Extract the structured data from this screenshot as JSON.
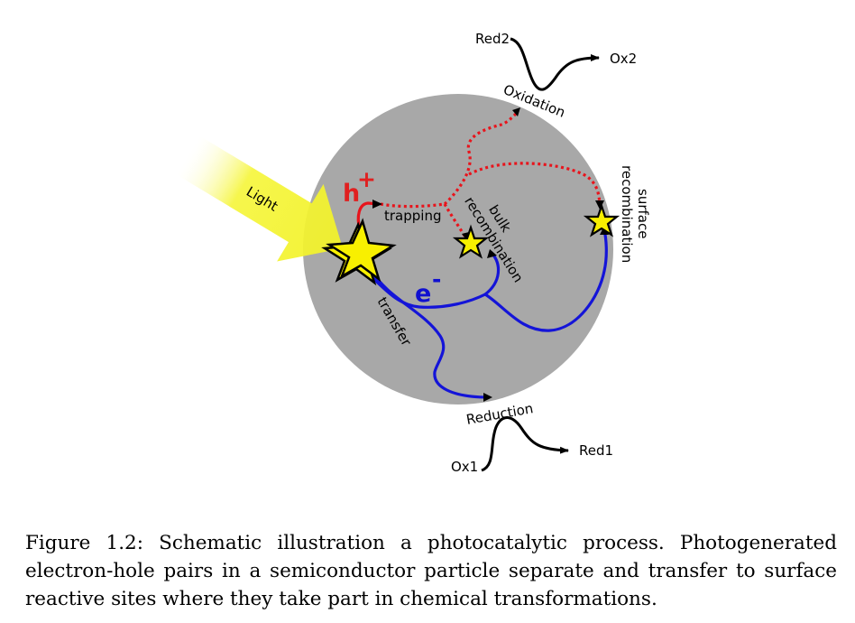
{
  "diagram": {
    "labels": {
      "light": "Light",
      "hole": "h",
      "hole_charge": "+",
      "electron": "e",
      "electron_charge": "-",
      "trapping": "trapping",
      "bulk_recombination_line1": "bulk",
      "bulk_recombination_line2": "recombination",
      "surface_recombination_line1": "surface",
      "surface_recombination_line2": "recombination",
      "transfer": "transfer",
      "oxidation": "Oxidation",
      "reduction": "Reduction",
      "red2": "Red2",
      "ox2": "Ox2",
      "ox1": "Ox1",
      "red1": "Red1"
    },
    "colors": {
      "particle": "#a8a8a8",
      "hole_path": "#e8141c",
      "electron_path": "#1414d8",
      "light_beam": "#f5f538",
      "star": "#f8f000",
      "hole_label": "#e02020",
      "electron_label": "#1010d0"
    }
  },
  "caption": {
    "label": "Figure 1.2:",
    "text": "Schematic illustration a photocatalytic process. Photogenerated electron-hole pairs in a semiconductor particle separate and transfer to surface reactive sites where they take part in chemical transformations."
  }
}
